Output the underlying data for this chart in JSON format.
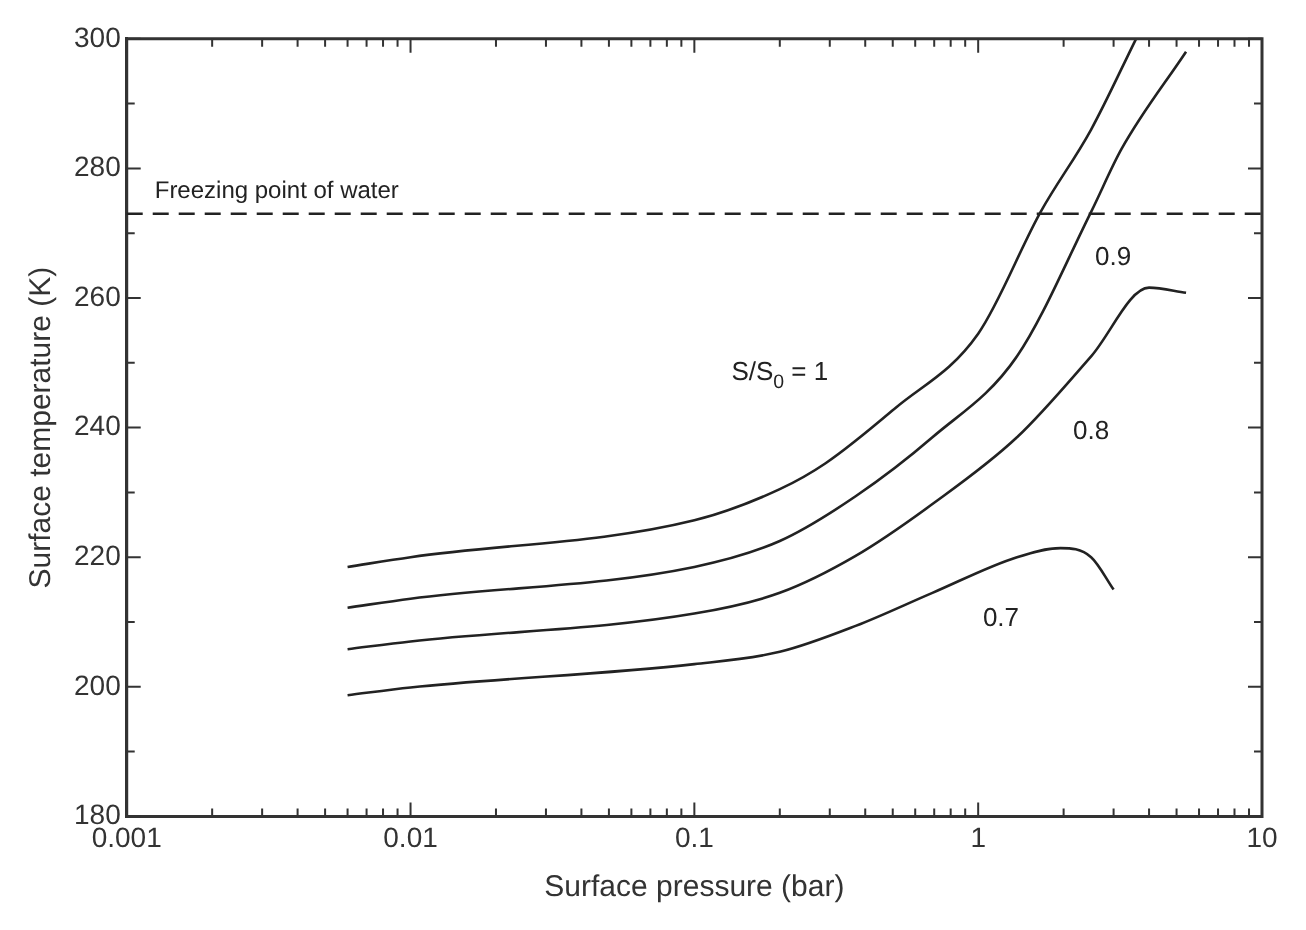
{
  "chart_data": {
    "type": "line",
    "xlabel": "Surface pressure (bar)",
    "ylabel": "Surface temperature (K)",
    "log": "x",
    "xlim": [
      0.001,
      10
    ],
    "ylim": [
      180,
      300
    ],
    "xticks": [
      0.001,
      {
        "value": 0.002,
        "label": null
      },
      {
        "value": 0.003,
        "label": null
      },
      {
        "value": 0.004,
        "label": null
      },
      {
        "value": 0.005,
        "label": null
      },
      {
        "value": 0.006,
        "label": null
      },
      {
        "value": 0.007,
        "label": null
      },
      {
        "value": 0.008,
        "label": null
      },
      {
        "value": 0.009,
        "label": null
      },
      0.01,
      {
        "value": 0.02,
        "label": null
      },
      {
        "value": 0.03,
        "label": null
      },
      {
        "value": 0.04,
        "label": null
      },
      {
        "value": 0.05,
        "label": null
      },
      {
        "value": 0.06,
        "label": null
      },
      {
        "value": 0.07,
        "label": null
      },
      {
        "value": 0.08,
        "label": null
      },
      {
        "value": 0.09,
        "label": null
      },
      0.1,
      {
        "value": 0.2,
        "label": null
      },
      {
        "value": 0.3,
        "label": null
      },
      {
        "value": 0.4,
        "label": null
      },
      {
        "value": 0.5,
        "label": null
      },
      {
        "value": 0.6,
        "label": null
      },
      {
        "value": 0.7,
        "label": null
      },
      {
        "value": 0.8,
        "label": null
      },
      {
        "value": 0.9,
        "label": null
      },
      1,
      {
        "value": 2,
        "label": null
      },
      {
        "value": 3,
        "label": null
      },
      {
        "value": 4,
        "label": null
      },
      {
        "value": 5,
        "label": null
      },
      {
        "value": 6,
        "label": null
      },
      {
        "value": 7,
        "label": null
      },
      {
        "value": 8,
        "label": null
      },
      {
        "value": 9,
        "label": null
      },
      10
    ],
    "yticks": [
      180,
      {
        "value": 190,
        "label": null
      },
      200,
      {
        "value": 210,
        "label": null
      },
      220,
      {
        "value": 230,
        "label": null
      },
      240,
      {
        "value": 250,
        "label": null
      },
      260,
      {
        "value": 270,
        "label": null
      },
      280,
      {
        "value": 290,
        "label": null
      },
      300
    ],
    "grid": false,
    "legend": false,
    "marker": "none",
    "line_style": "solid",
    "series": [
      {
        "name": "S/S$_{0}$ = 1",
        "color": "#222222",
        "x": [
          0.006,
          0.01,
          0.1,
          0.2,
          0.29,
          0.51,
          1,
          1.66,
          2.5,
          3.6
        ],
        "values": [
          218.5,
          220,
          225.7,
          230.5,
          234.5,
          243,
          254.5,
          273.3,
          286,
          300
        ]
      },
      {
        "name": "0.9",
        "color": "#222222",
        "x": [
          0.006,
          0.01,
          0.1,
          0.2,
          0.37,
          0.69,
          1.37,
          2.5,
          3.2,
          5.4
        ],
        "values": [
          212.2,
          213.6,
          218.5,
          222.5,
          229.4,
          238.5,
          251,
          273.3,
          283,
          298
        ]
      },
      {
        "name": "0.8",
        "color": "#222222",
        "x": [
          0.006,
          0.01,
          0.1,
          0.2,
          0.37,
          0.69,
          1.37,
          2.5,
          4,
          5.4
        ],
        "values": [
          205.8,
          207,
          211.3,
          214.5,
          220.2,
          228.2,
          238.5,
          251,
          261.6,
          260.8
        ]
      },
      {
        "name": "0.7",
        "color": "#222222",
        "x": [
          0.006,
          0.01,
          0.1,
          0.2,
          0.37,
          0.69,
          1.37,
          1.95,
          2.5,
          3
        ],
        "values": [
          198.7,
          199.9,
          203.5,
          205.4,
          209.4,
          214.5,
          220,
          221.4,
          220,
          215
        ]
      }
    ],
    "ref_lines": [
      {
        "axis": "y",
        "value": 273,
        "label": "Freezing point of water",
        "color": "#222222",
        "line_style": "dashed"
      }
    ]
  }
}
